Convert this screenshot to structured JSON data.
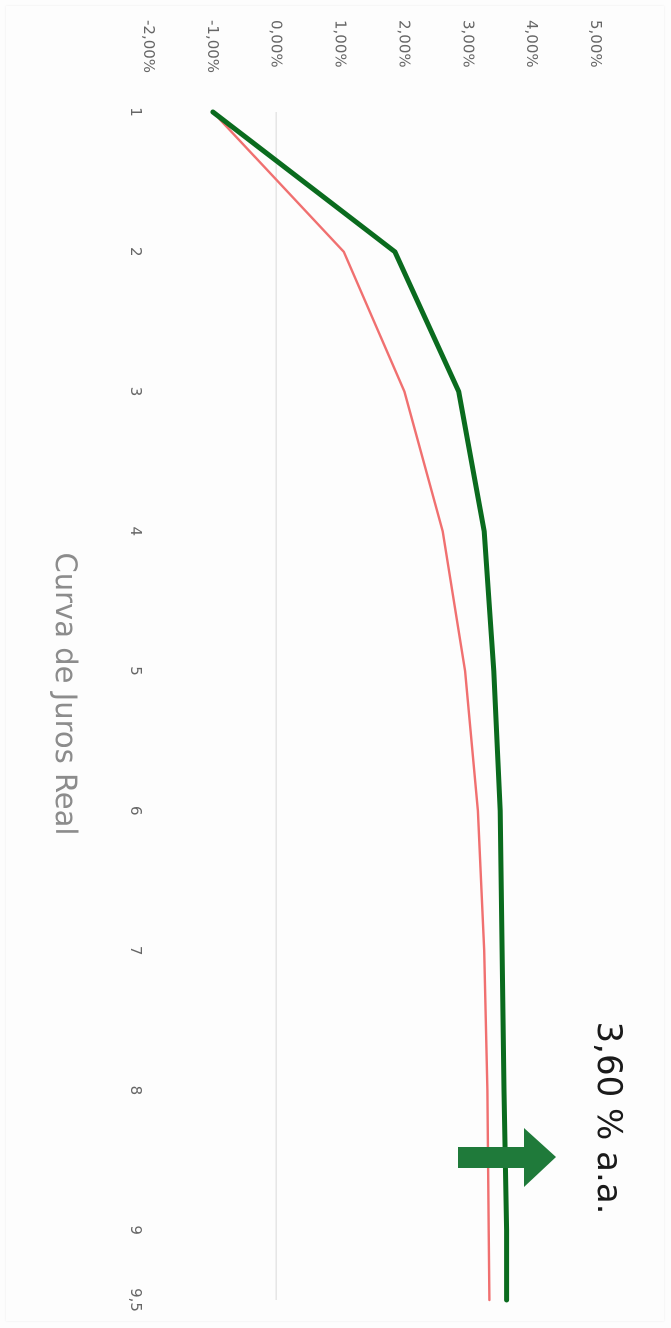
{
  "chart_data": {
    "type": "line",
    "title": "Curva de Juros Real",
    "x": [
      "1",
      "2",
      "3",
      "4",
      "5",
      "6",
      "7",
      "8",
      "9",
      "9,5"
    ],
    "x_positions": [
      1,
      2,
      3,
      4,
      5,
      6,
      7,
      8,
      9,
      9.5
    ],
    "ylim": [
      -2,
      5
    ],
    "yticks": [
      5,
      4,
      3,
      2,
      1,
      0,
      -1,
      -2
    ],
    "ytick_labels": [
      "5,00%",
      "4,00%",
      "3,00%",
      "2,00%",
      "1,00%",
      "0,00%",
      "-1,00%",
      "-2,00%"
    ],
    "series": [
      {
        "values": [
          -1.0,
          1.85,
          2.85,
          3.25,
          3.4,
          3.5,
          3.53,
          3.56,
          3.6,
          3.6
        ],
        "color": "#0a6b1e"
      },
      {
        "values": [
          -1.0,
          1.05,
          2.0,
          2.6,
          2.95,
          3.15,
          3.25,
          3.3,
          3.32,
          3.33
        ],
        "color": "#f07070"
      }
    ],
    "grid": false,
    "orientation": "rotated-90-clockwise"
  },
  "annotation": {
    "text": "3,60 % a.a.",
    "arrow_icon": "right-arrow-icon",
    "arrow_color": "#1f7a3a"
  }
}
